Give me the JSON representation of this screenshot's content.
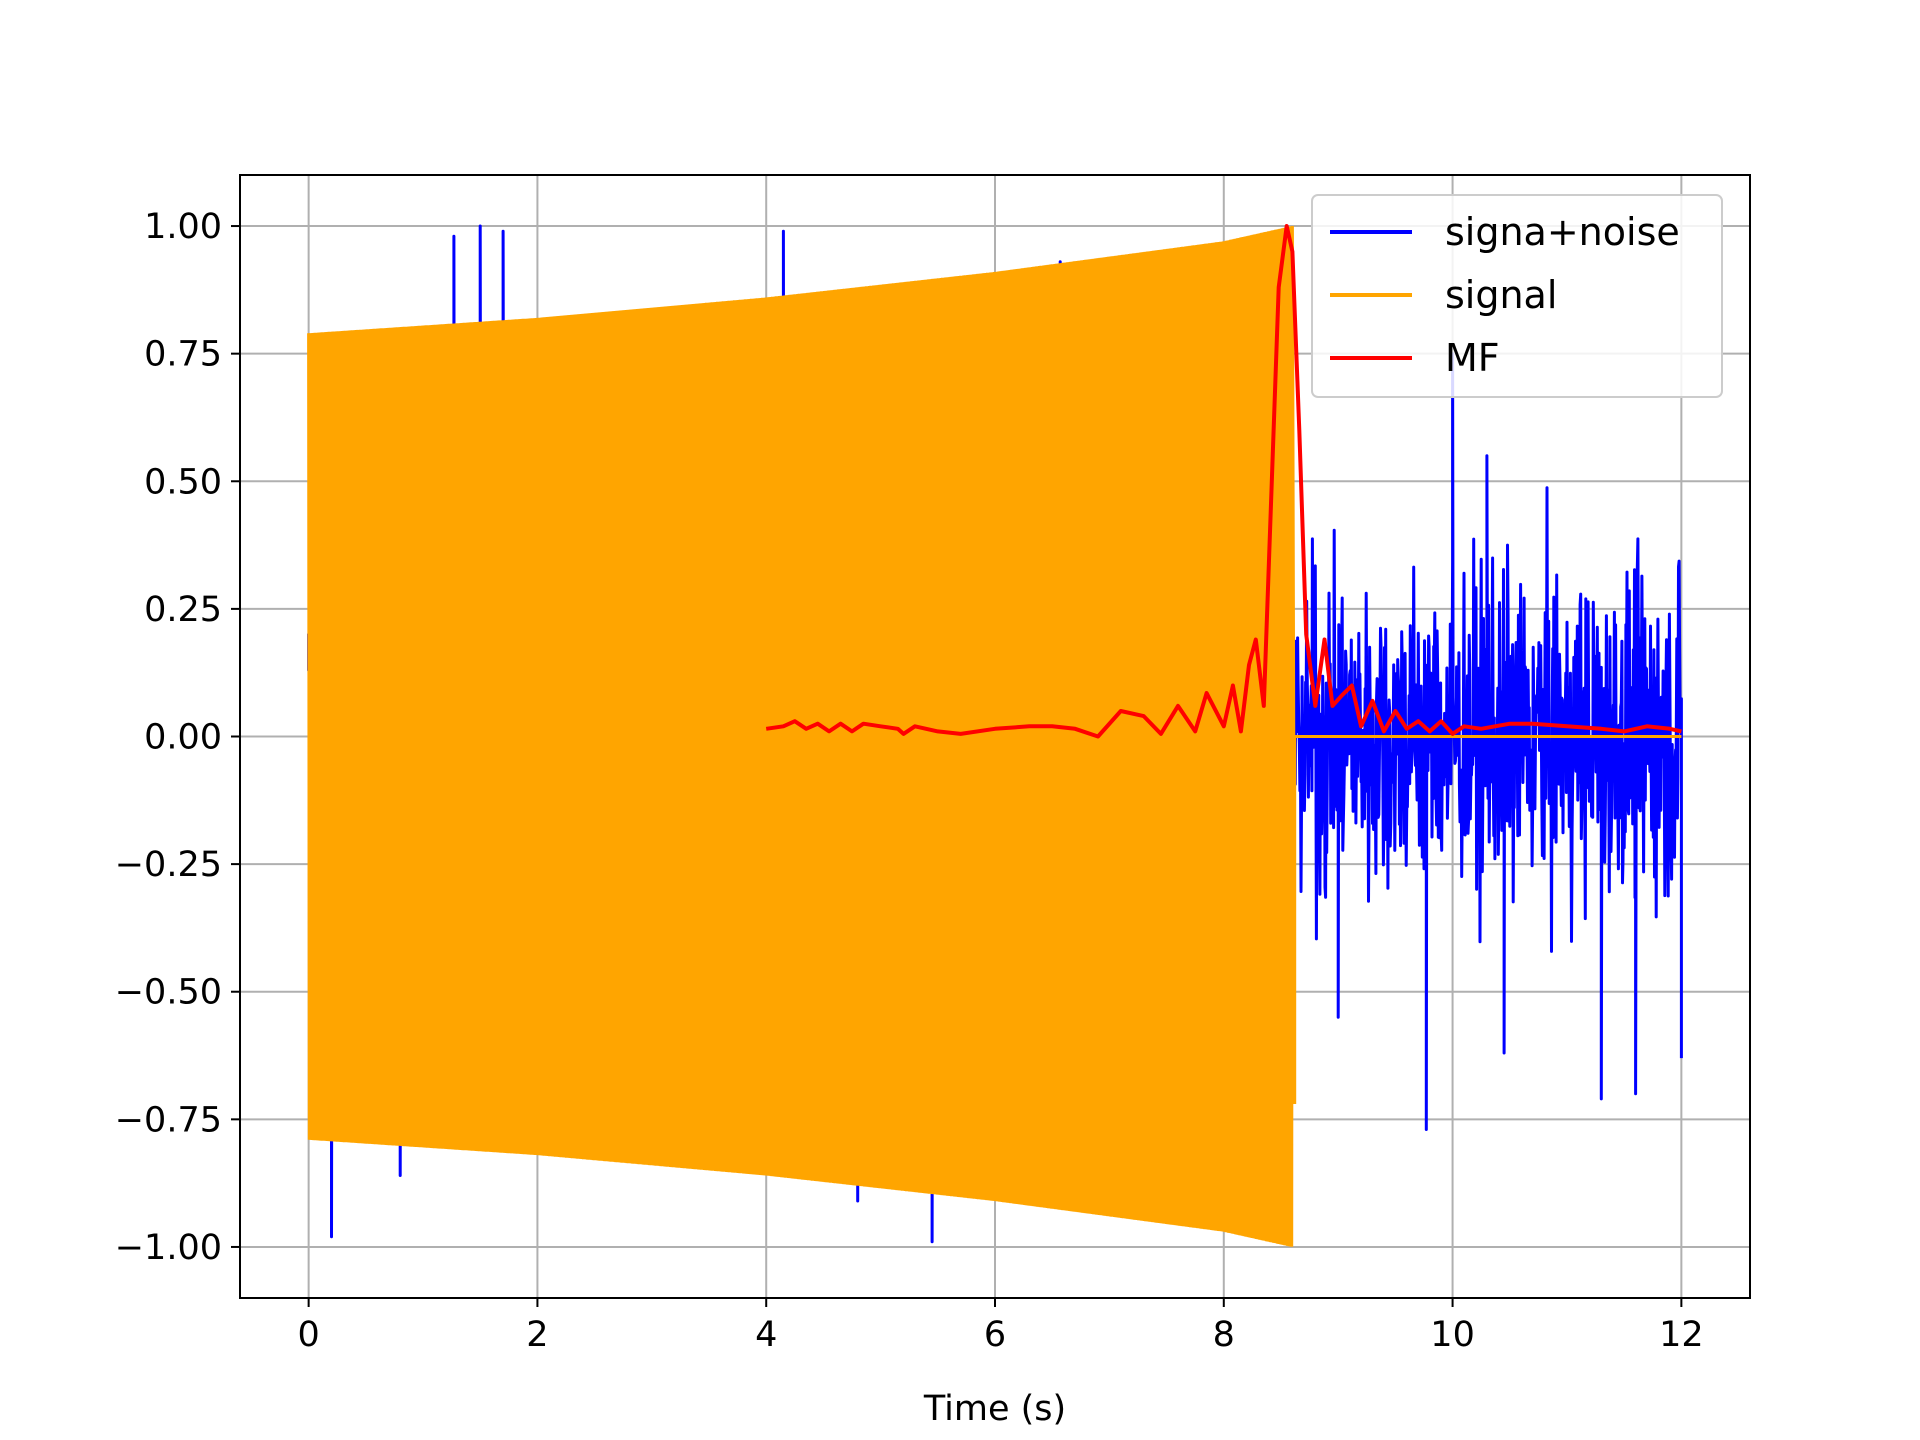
{
  "chart_data": {
    "type": "line",
    "title": "",
    "xlabel": "Time (s)",
    "ylabel": "",
    "xlim": [
      -0.6,
      12.6
    ],
    "ylim": [
      -1.1,
      1.1
    ],
    "grid": true,
    "legend_position": "top-right",
    "xticks": [
      0,
      2,
      4,
      6,
      8,
      10,
      12
    ],
    "xtick_labels": [
      "0",
      "2",
      "4",
      "6",
      "8",
      "10",
      "12"
    ],
    "yticks": [
      1.0,
      0.75,
      0.5,
      0.25,
      0.0,
      -0.25,
      -0.5,
      -0.75,
      -1.0
    ],
    "ytick_labels": [
      "1.00",
      "0.75",
      "0.50",
      "0.25",
      "0.00",
      "−0.25",
      "−0.50",
      "−0.75",
      "−1.00"
    ],
    "series": [
      {
        "name": "signa+noise",
        "color": "#0000ff",
        "description_points": {
          "x": [
            0.0,
            0.2,
            0.8,
            1.27,
            1.5,
            1.7,
            4.15,
            4.8,
            5.45,
            6.57,
            8.6,
            9.0,
            9.77,
            10.0,
            10.3,
            10.45,
            11.3,
            11.6,
            12.0
          ],
          "y": [
            0.13,
            -0.98,
            -0.86,
            0.98,
            1.0,
            0.99,
            0.99,
            -0.91,
            -0.99,
            0.93,
            0.4,
            -0.55,
            -0.77,
            0.75,
            0.55,
            -0.62,
            -0.71,
            -0.7,
            -0.63
          ]
        }
      },
      {
        "name": "signal",
        "color": "#ffa500",
        "envelope": {
          "x": [
            0.0,
            2.0,
            4.0,
            6.0,
            8.0,
            8.6
          ],
          "upper": [
            0.79,
            0.82,
            0.86,
            0.91,
            0.97,
            1.0
          ],
          "lower": [
            -0.79,
            -0.82,
            -0.86,
            -0.91,
            -0.97,
            -1.0
          ]
        },
        "after_end": {
          "x": [
            8.62,
            12.0
          ],
          "y": [
            0.0,
            0.0
          ]
        }
      },
      {
        "name": "MF",
        "color": "#ff0000",
        "x": [
          4.0,
          4.15,
          4.25,
          4.35,
          4.45,
          4.55,
          4.65,
          4.75,
          4.85,
          5.0,
          5.15,
          5.2,
          5.3,
          5.5,
          5.7,
          6.0,
          6.3,
          6.5,
          6.7,
          6.9,
          7.1,
          7.3,
          7.45,
          7.6,
          7.75,
          7.85,
          8.0,
          8.08,
          8.15,
          8.22,
          8.28,
          8.35,
          8.42,
          8.48,
          8.55,
          8.6,
          8.66,
          8.72,
          8.8,
          8.88,
          8.95,
          9.03,
          9.12,
          9.2,
          9.3,
          9.4,
          9.5,
          9.6,
          9.7,
          9.8,
          9.9,
          10.0,
          10.1,
          10.25,
          10.5,
          10.7,
          11.0,
          11.3,
          11.5,
          11.7,
          11.9,
          12.0
        ],
        "y": [
          0.015,
          0.02,
          0.03,
          0.015,
          0.025,
          0.01,
          0.025,
          0.01,
          0.025,
          0.02,
          0.015,
          0.005,
          0.02,
          0.01,
          0.005,
          0.015,
          0.02,
          0.02,
          0.015,
          0.0,
          0.05,
          0.04,
          0.005,
          0.06,
          0.01,
          0.085,
          0.02,
          0.1,
          0.01,
          0.14,
          0.19,
          0.06,
          0.5,
          0.88,
          1.0,
          0.95,
          0.6,
          0.2,
          0.06,
          0.19,
          0.06,
          0.08,
          0.1,
          0.02,
          0.07,
          0.01,
          0.05,
          0.015,
          0.03,
          0.01,
          0.03,
          0.005,
          0.02,
          0.015,
          0.025,
          0.025,
          0.02,
          0.015,
          0.01,
          0.02,
          0.015,
          0.01
        ]
      }
    ]
  }
}
